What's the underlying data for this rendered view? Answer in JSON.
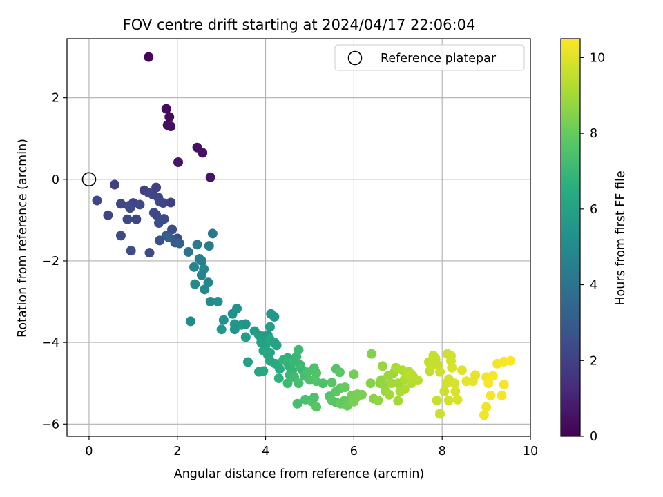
{
  "chart_data": {
    "type": "scatter",
    "title": "FOV centre drift starting at 2024/04/17 22:06:04",
    "xlabel": "Angular distance from reference (arcmin)",
    "ylabel": "Rotation from reference (arcmin)",
    "xlim": [
      -0.5,
      10
    ],
    "ylim": [
      -6.3,
      3.45
    ],
    "xticks": [
      0,
      2,
      4,
      6,
      8,
      10
    ],
    "yticks": [
      -6,
      -4,
      -2,
      0,
      2
    ],
    "xtick_labels": [
      "0",
      "2",
      "4",
      "6",
      "8",
      "10"
    ],
    "ytick_labels": [
      "−6",
      "−4",
      "−2",
      "0",
      "2"
    ],
    "grid": true,
    "legend": {
      "placement": "top-right",
      "entries": [
        "Reference platepar"
      ]
    },
    "reference_point": {
      "x": 0,
      "y": 0
    },
    "colorbar": {
      "label": "Hours from first FF file",
      "range": [
        0,
        10.5
      ],
      "colormap": "viridis",
      "ticks": [
        0,
        2,
        4,
        6,
        8,
        10
      ],
      "tick_labels": [
        "0",
        "2",
        "4",
        "6",
        "8",
        "10"
      ]
    },
    "points": [
      [
        1.35,
        3.0,
        0.1
      ],
      [
        1.75,
        1.73,
        0.3
      ],
      [
        1.82,
        1.53,
        0.3
      ],
      [
        1.78,
        1.33,
        0.4
      ],
      [
        1.85,
        1.3,
        0.4
      ],
      [
        2.45,
        0.78,
        0.5
      ],
      [
        2.57,
        0.65,
        0.5
      ],
      [
        2.02,
        0.42,
        0.6
      ],
      [
        2.75,
        0.05,
        0.6
      ],
      [
        0.58,
        -0.13,
        2.0
      ],
      [
        0.18,
        -0.52,
        2.2
      ],
      [
        0.72,
        -0.6,
        2.2
      ],
      [
        1.0,
        -0.58,
        2.1
      ],
      [
        1.15,
        -0.62,
        2.3
      ],
      [
        1.25,
        -0.27,
        2.0
      ],
      [
        1.35,
        -0.33,
        2.1
      ],
      [
        1.45,
        -0.38,
        2.2
      ],
      [
        1.52,
        -0.2,
        2.0
      ],
      [
        1.57,
        -0.45,
        2.2
      ],
      [
        1.6,
        -0.55,
        2.3
      ],
      [
        1.68,
        -0.58,
        2.2
      ],
      [
        1.85,
        -0.57,
        2.0
      ],
      [
        0.9,
        -0.65,
        2.3
      ],
      [
        0.93,
        -0.7,
        2.4
      ],
      [
        0.87,
        -0.98,
        2.3
      ],
      [
        1.07,
        -0.98,
        2.2
      ],
      [
        0.43,
        -0.88,
        2.2
      ],
      [
        0.72,
        -1.38,
        2.4
      ],
      [
        1.47,
        -0.82,
        2.4
      ],
      [
        1.52,
        -0.87,
        2.3
      ],
      [
        1.58,
        -1.07,
        2.5
      ],
      [
        1.7,
        -0.97,
        2.4
      ],
      [
        1.88,
        -1.23,
        2.5
      ],
      [
        1.75,
        -1.38,
        2.8
      ],
      [
        1.8,
        -1.42,
        3.2
      ],
      [
        1.6,
        -1.5,
        2.6
      ],
      [
        2.0,
        -1.45,
        2.5
      ],
      [
        1.95,
        -1.55,
        3.0
      ],
      [
        2.05,
        -1.57,
        3.2
      ],
      [
        0.95,
        -1.75,
        2.5
      ],
      [
        1.37,
        -1.8,
        2.4
      ],
      [
        2.25,
        -1.78,
        4.0
      ],
      [
        2.45,
        -1.6,
        4.3
      ],
      [
        2.72,
        -1.63,
        4.3
      ],
      [
        2.8,
        -1.33,
        4.2
      ],
      [
        2.38,
        -2.15,
        4.7
      ],
      [
        2.5,
        -1.95,
        4.6
      ],
      [
        2.55,
        -2.0,
        4.5
      ],
      [
        2.6,
        -2.2,
        4.8
      ],
      [
        2.55,
        -2.35,
        4.6
      ],
      [
        2.4,
        -2.57,
        5.0
      ],
      [
        2.7,
        -2.53,
        4.7
      ],
      [
        2.62,
        -2.7,
        4.9
      ],
      [
        2.75,
        -3.0,
        5.0
      ],
      [
        2.92,
        -3.0,
        5.2
      ],
      [
        2.3,
        -3.48,
        5.0
      ],
      [
        3.05,
        -3.45,
        5.3
      ],
      [
        3.25,
        -3.3,
        5.2
      ],
      [
        3.35,
        -3.17,
        5.3
      ],
      [
        3.3,
        -3.55,
        5.5
      ],
      [
        3.45,
        -3.57,
        5.6
      ],
      [
        3.55,
        -3.55,
        5.4
      ],
      [
        3.75,
        -3.72,
        5.6
      ],
      [
        3.0,
        -3.68,
        5.5
      ],
      [
        3.3,
        -3.68,
        5.4
      ],
      [
        3.55,
        -3.87,
        5.8
      ],
      [
        3.6,
        -4.48,
        5.9
      ],
      [
        3.85,
        -3.82,
        5.8
      ],
      [
        3.9,
        -4.0,
        6.0
      ],
      [
        3.95,
        -3.85,
        5.8
      ],
      [
        4.05,
        -3.82,
        5.7
      ],
      [
        4.0,
        -4.07,
        6.0
      ],
      [
        4.1,
        -3.93,
        6.2
      ],
      [
        4.2,
        -4.0,
        6.1
      ],
      [
        4.25,
        -4.07,
        6.0
      ],
      [
        4.1,
        -4.25,
        6.1
      ],
      [
        3.95,
        -4.2,
        6.2
      ],
      [
        4.05,
        -4.3,
        6.3
      ],
      [
        4.1,
        -4.45,
        6.3
      ],
      [
        4.22,
        -4.52,
        6.4
      ],
      [
        3.85,
        -4.72,
        6.1
      ],
      [
        3.95,
        -4.7,
        6.3
      ],
      [
        4.1,
        -3.62,
        5.9
      ],
      [
        4.12,
        -3.3,
        5.6
      ],
      [
        4.2,
        -3.37,
        5.5
      ],
      [
        4.32,
        -4.65,
        6.5
      ],
      [
        4.4,
        -4.43,
        6.8
      ],
      [
        4.5,
        -4.38,
        6.7
      ],
      [
        4.5,
        -4.5,
        6.9
      ],
      [
        4.55,
        -4.6,
        6.7
      ],
      [
        4.62,
        -4.48,
        7.0
      ],
      [
        4.6,
        -4.7,
        6.9
      ],
      [
        4.7,
        -4.35,
        7.0
      ],
      [
        4.75,
        -4.18,
        7.1
      ],
      [
        4.78,
        -4.55,
        7.0
      ],
      [
        4.8,
        -4.63,
        7.2
      ],
      [
        4.85,
        -4.7,
        7.0
      ],
      [
        4.88,
        -4.82,
        7.3
      ],
      [
        4.95,
        -4.73,
        7.4
      ],
      [
        4.55,
        -4.8,
        7.0
      ],
      [
        4.65,
        -4.85,
        7.2
      ],
      [
        4.75,
        -5.0,
        7.3
      ],
      [
        4.3,
        -4.88,
        6.7
      ],
      [
        4.5,
        -5.0,
        7.1
      ],
      [
        5.0,
        -4.92,
        7.5
      ],
      [
        5.15,
        -4.75,
        7.6
      ],
      [
        5.1,
        -4.63,
        7.5
      ],
      [
        5.15,
        -4.95,
        7.6
      ],
      [
        5.3,
        -5.0,
        7.5
      ],
      [
        4.72,
        -5.5,
        7.3
      ],
      [
        4.9,
        -5.4,
        7.4
      ],
      [
        5.05,
        -5.45,
        7.6
      ],
      [
        5.15,
        -5.58,
        7.7
      ],
      [
        5.1,
        -5.35,
        7.5
      ],
      [
        5.45,
        -5.32,
        7.6
      ],
      [
        5.5,
        -5.42,
        7.8
      ],
      [
        5.6,
        -5.47,
        7.7
      ],
      [
        5.7,
        -5.5,
        8.0
      ],
      [
        5.78,
        -5.43,
        7.9
      ],
      [
        5.5,
        -4.98,
        7.7
      ],
      [
        5.6,
        -4.65,
        7.6
      ],
      [
        5.68,
        -4.73,
        7.8
      ],
      [
        5.7,
        -5.12,
        7.9
      ],
      [
        5.6,
        -5.2,
        7.8
      ],
      [
        5.8,
        -5.1,
        8.0
      ],
      [
        5.9,
        -5.45,
        8.0
      ],
      [
        6.0,
        -4.78,
        8.2
      ],
      [
        6.05,
        -5.35,
        8.3
      ],
      [
        6.08,
        -5.27,
        8.4
      ],
      [
        6.18,
        -5.28,
        8.3
      ],
      [
        5.95,
        -5.3,
        8.2
      ],
      [
        5.85,
        -5.55,
        8.1
      ],
      [
        6.0,
        -5.45,
        8.3
      ],
      [
        6.4,
        -4.28,
        8.5
      ],
      [
        6.38,
        -5.0,
        8.5
      ],
      [
        6.45,
        -5.38,
        8.6
      ],
      [
        6.55,
        -5.42,
        8.7
      ],
      [
        6.6,
        -5.0,
        8.6
      ],
      [
        6.62,
        -4.92,
        8.7
      ],
      [
        6.65,
        -4.58,
        8.8
      ],
      [
        6.7,
        -5.05,
        8.8
      ],
      [
        6.72,
        -5.2,
        8.9
      ],
      [
        6.78,
        -4.82,
        8.9
      ],
      [
        6.8,
        -5.28,
        9.0
      ],
      [
        6.85,
        -5.0,
        9.0
      ],
      [
        6.9,
        -4.75,
        8.9
      ],
      [
        6.95,
        -4.62,
        9.1
      ],
      [
        7.0,
        -5.0,
        9.0
      ],
      [
        7.05,
        -5.2,
        9.1
      ],
      [
        7.0,
        -5.43,
        9.0
      ],
      [
        7.1,
        -4.68,
        9.2
      ],
      [
        7.15,
        -4.9,
        9.2
      ],
      [
        7.2,
        -4.82,
        9.3
      ],
      [
        7.25,
        -4.72,
        9.3
      ],
      [
        7.3,
        -4.78,
        9.4
      ],
      [
        7.35,
        -4.85,
        9.4
      ],
      [
        7.45,
        -4.93,
        9.4
      ],
      [
        7.15,
        -5.15,
        9.2
      ],
      [
        7.3,
        -5.0,
        9.3
      ],
      [
        7.7,
        -4.48,
        9.5
      ],
      [
        7.72,
        -4.7,
        9.5
      ],
      [
        7.75,
        -4.57,
        9.6
      ],
      [
        7.8,
        -4.32,
        9.6
      ],
      [
        7.85,
        -4.4,
        9.6
      ],
      [
        7.9,
        -4.55,
        9.6
      ],
      [
        7.95,
        -4.72,
        9.7
      ],
      [
        7.88,
        -5.42,
        9.6
      ],
      [
        7.95,
        -5.75,
        9.7
      ],
      [
        8.05,
        -5.2,
        9.7
      ],
      [
        8.1,
        -5.0,
        9.8
      ],
      [
        8.15,
        -4.9,
        9.8
      ],
      [
        8.15,
        -5.42,
        9.8
      ],
      [
        8.12,
        -4.28,
        9.7
      ],
      [
        8.2,
        -4.33,
        9.8
      ],
      [
        8.2,
        -4.45,
        9.8
      ],
      [
        8.22,
        -4.62,
        9.9
      ],
      [
        8.28,
        -5.0,
        9.9
      ],
      [
        8.3,
        -5.2,
        9.9
      ],
      [
        8.35,
        -5.4,
        9.9
      ],
      [
        8.45,
        -4.68,
        10.0
      ],
      [
        8.55,
        -4.95,
        10.1
      ],
      [
        8.7,
        -4.95,
        10.1
      ],
      [
        8.75,
        -4.8,
        10.1
      ],
      [
        9.0,
        -4.85,
        10.3
      ],
      [
        9.05,
        -5.0,
        10.4
      ],
      [
        9.15,
        -4.82,
        10.4
      ],
      [
        9.1,
        -5.3,
        10.4
      ],
      [
        9.25,
        -4.52,
        10.3
      ],
      [
        9.4,
        -4.47,
        10.4
      ],
      [
        9.55,
        -4.45,
        10.5
      ],
      [
        9.4,
        -5.03,
        10.4
      ],
      [
        9.35,
        -5.3,
        10.4
      ],
      [
        9.0,
        -5.58,
        10.3
      ],
      [
        8.95,
        -5.78,
        10.3
      ]
    ]
  }
}
